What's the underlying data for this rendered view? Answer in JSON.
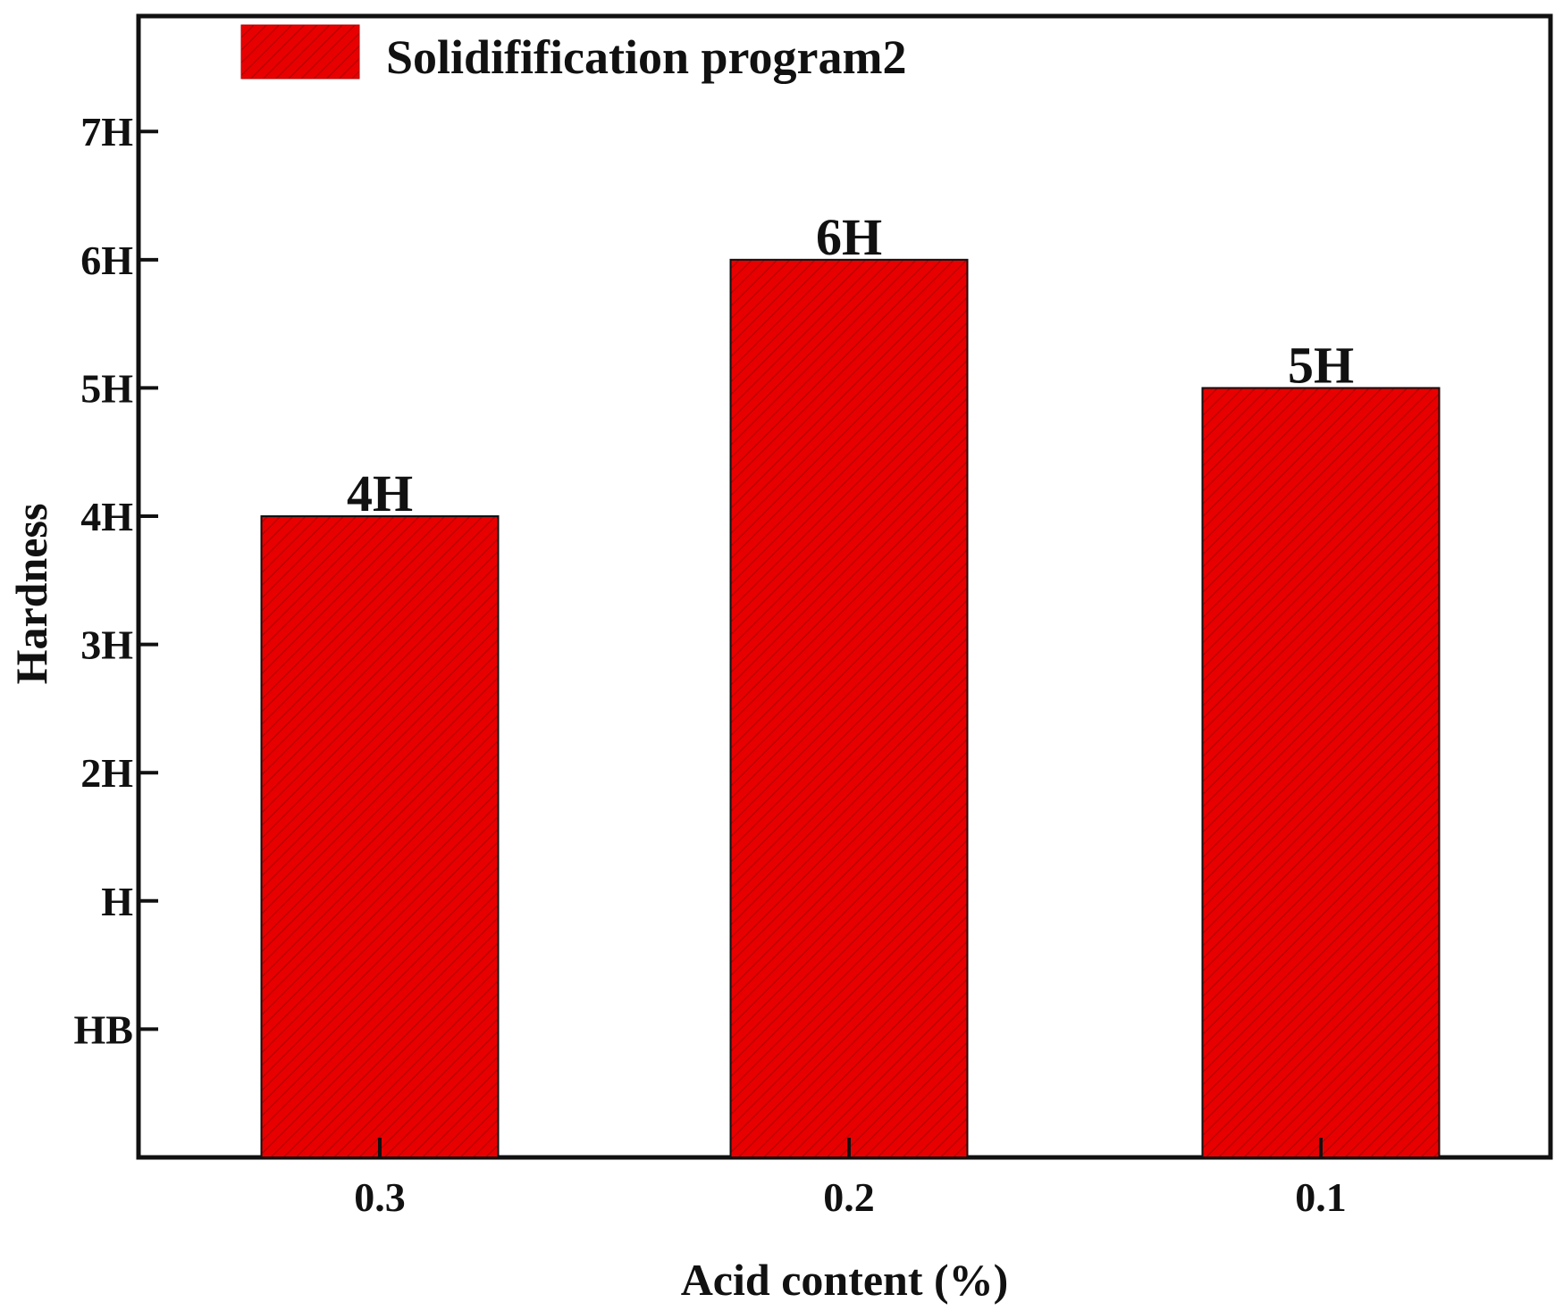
{
  "chart_data": {
    "type": "bar",
    "title": "",
    "xlabel": "Acid content (%)",
    "ylabel": "Hardness",
    "categories": [
      "0.3",
      "0.2",
      "0.1"
    ],
    "y_ticks": [
      "HB",
      "H",
      "2H",
      "3H",
      "4H",
      "5H",
      "6H",
      "7H"
    ],
    "ylim": [
      -1,
      7.9
    ],
    "series": [
      {
        "name": "Solidifification program2",
        "values": [
          4,
          6,
          5
        ],
        "data_labels": [
          "4H",
          "6H",
          "5H"
        ]
      }
    ],
    "colors": {
      "bar_fill": "#e80000",
      "bar_hatch": "#8a0000",
      "axis": "#111111"
    },
    "grid": false,
    "legend_position": "top-left"
  }
}
